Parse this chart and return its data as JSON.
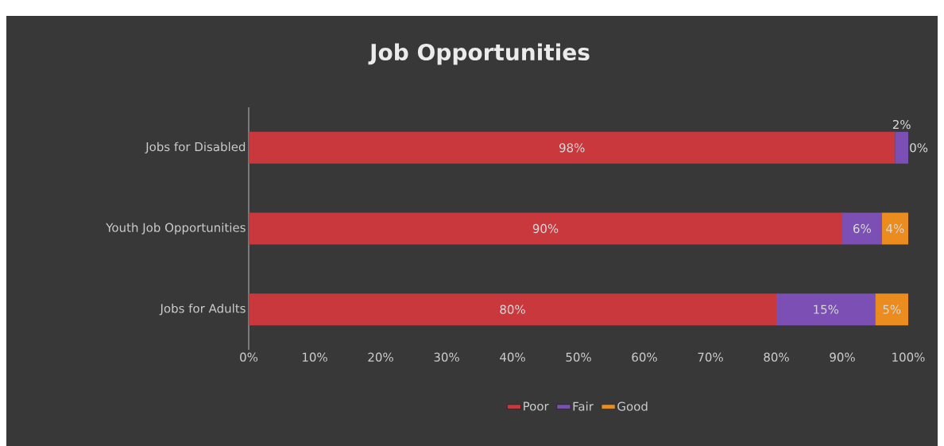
{
  "chart_data": {
    "type": "bar",
    "title": "Job Opportunities",
    "orientation": "horizontal",
    "stacked": true,
    "legend": "bottom",
    "categories": [
      "Jobs for Disabled",
      "Youth Job Opportunities",
      "Jobs for Adults"
    ],
    "series": [
      {
        "name": "Poor",
        "color": "#c8383c",
        "values": [
          98,
          90,
          80
        ],
        "value_labels": [
          "98%",
          "90%",
          "80%"
        ]
      },
      {
        "name": "Fair",
        "color": "#7b4fb3",
        "values": [
          2,
          6,
          15
        ],
        "value_labels": [
          "2%",
          "6%",
          "15%"
        ]
      },
      {
        "name": "Good",
        "color": "#ea8c1e",
        "values": [
          0,
          4,
          5
        ],
        "value_labels": [
          "0%",
          "4%",
          "5%"
        ]
      }
    ],
    "xlim": [
      0,
      100
    ],
    "xticks": [
      {
        "value": 0,
        "label": "0%"
      },
      {
        "value": 10,
        "label": "10%"
      },
      {
        "value": 20,
        "label": "20%"
      },
      {
        "value": 30,
        "label": "30%"
      },
      {
        "value": 40,
        "label": "40%"
      },
      {
        "value": 50,
        "label": "50%"
      },
      {
        "value": 60,
        "label": "60%"
      },
      {
        "value": 70,
        "label": "70%"
      },
      {
        "value": 80,
        "label": "80%"
      },
      {
        "value": 90,
        "label": "90%"
      },
      {
        "value": 100,
        "label": "100%"
      }
    ]
  }
}
